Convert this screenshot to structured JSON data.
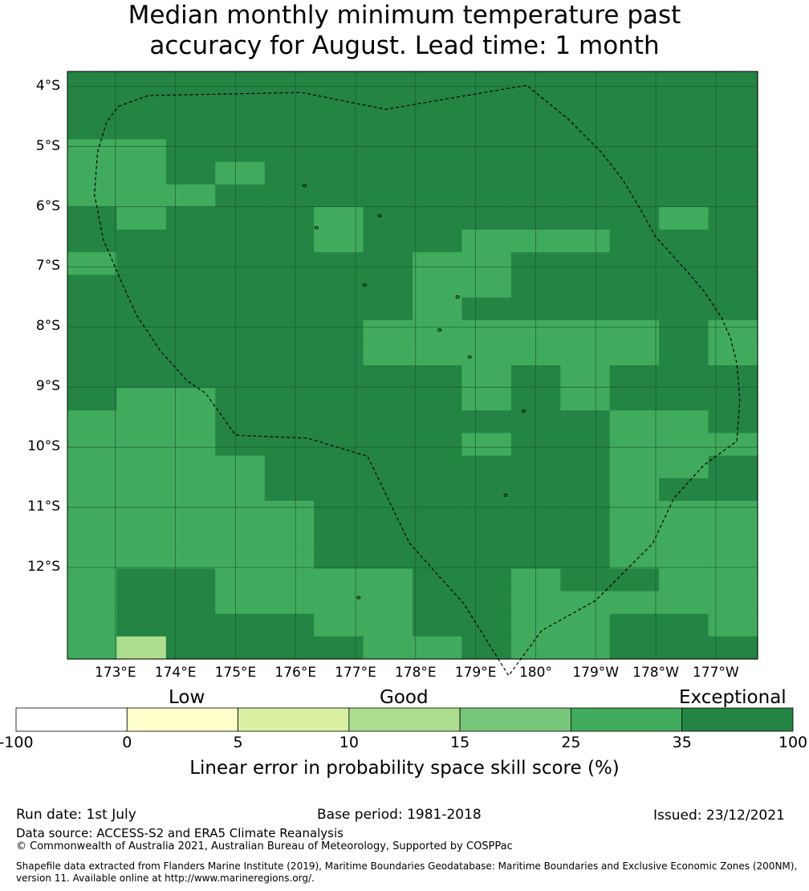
{
  "title": {
    "line1": "Median monthly minimum temperature past",
    "line2": "accuracy for August. Lead time: 1 month"
  },
  "map": {
    "lat_labels": [
      "4°S",
      "5°S",
      "6°S",
      "7°S",
      "8°S",
      "9°S",
      "10°S",
      "11°S",
      "12°S"
    ],
    "lon_labels": [
      "173°E",
      "174°E",
      "175°E",
      "176°E",
      "177°E",
      "178°E",
      "179°E",
      "180°",
      "179°W",
      "178°W",
      "177°W"
    ],
    "cell_rows": [
      "77777777777777",
      "77777777777777",
      "77777777777777",
      "66777777777777",
      "66767777777777",
      "66677777777777",
      "76777677777767",
      "77777677666777",
      "67777776677777",
      "77777776677777",
      "77777776777777",
      "77777766666676",
      "77777766666676",
      "77777777676777",
      "76677777676777",
      "66677777777667",
      "66677777677666",
      "66667777777667",
      "66667777777647",
      "66666777777666",
      "66666777777666",
      "66666777777666",
      "67766667767766",
      "67766667766666",
      "67777667766776",
      "66777766766777"
    ],
    "override_cells": [
      {
        "row": 25,
        "col": 1,
        "level": 5
      }
    ],
    "boundary": [
      [
        173.05,
        -4.33
      ],
      [
        173.55,
        -4.15
      ],
      [
        176.1,
        -4.1
      ],
      [
        177.5,
        -4.38
      ],
      [
        179.85,
        -3.98
      ],
      [
        180.55,
        -4.55
      ],
      [
        181.1,
        -5.1
      ],
      [
        181.45,
        -5.55
      ],
      [
        181.75,
        -6.05
      ],
      [
        182.0,
        -6.5
      ],
      [
        182.5,
        -7.05
      ],
      [
        182.8,
        -7.4
      ],
      [
        183.1,
        -7.85
      ],
      [
        183.25,
        -8.2
      ],
      [
        183.35,
        -8.6
      ],
      [
        183.4,
        -9.2
      ],
      [
        183.35,
        -9.9
      ],
      [
        182.8,
        -10.3
      ],
      [
        182.3,
        -10.85
      ],
      [
        181.95,
        -11.6
      ],
      [
        181.0,
        -12.55
      ],
      [
        180.1,
        -13.05
      ],
      [
        179.55,
        -13.8
      ],
      [
        178.8,
        -12.6
      ],
      [
        177.9,
        -11.6
      ],
      [
        177.2,
        -10.15
      ],
      [
        176.2,
        -9.85
      ],
      [
        175.0,
        -9.8
      ],
      [
        174.5,
        -9.1
      ],
      [
        174.2,
        -8.9
      ],
      [
        173.75,
        -8.4
      ],
      [
        173.35,
        -7.8
      ],
      [
        173.1,
        -7.25
      ],
      [
        172.8,
        -6.55
      ],
      [
        172.65,
        -5.8
      ],
      [
        172.7,
        -5.1
      ],
      [
        172.85,
        -4.6
      ],
      [
        173.05,
        -4.33
      ]
    ],
    "islands": [
      [
        176.15,
        -5.65
      ],
      [
        176.35,
        -6.35
      ],
      [
        177.4,
        -6.15
      ],
      [
        177.15,
        -7.3
      ],
      [
        178.7,
        -7.5
      ],
      [
        178.4,
        -8.05
      ],
      [
        178.9,
        -8.5
      ],
      [
        179.8,
        -9.4
      ],
      [
        179.5,
        -10.8
      ],
      [
        177.05,
        -12.5
      ]
    ]
  },
  "colorbar": {
    "categories": [
      "Low",
      "Good",
      "Exceptional"
    ],
    "ticks": [
      "-100",
      "0",
      "5",
      "10",
      "15",
      "25",
      "35",
      "100"
    ],
    "colors": [
      "#ffffff",
      "#ffffcc",
      "#d9f0a3",
      "#addd8e",
      "#78c679",
      "#41ab5d",
      "#238443"
    ],
    "label": "Linear error in probability space skill score (%)"
  },
  "footer": {
    "run_date": "Run date: 1st July",
    "base_period": "Base period: 1981-2018",
    "issued": "Issued: 23/12/2021",
    "data_source": "Data source: ACCESS-S2 and ERA5 Climate Reanalysis",
    "copyright": "© Commonwealth of Australia 2021, Australian Bureau of Meteorology, Supported by COSPPac",
    "shapefile_line1": "Shapefile data extracted from Flanders Marine Institute (2019), Maritime Boundaries Geodatabase: Maritime Boundaries and Exclusive Economic Zones (200NM),",
    "shapefile_line2": "version 11. Available online at http://www.marineregions.org/."
  }
}
